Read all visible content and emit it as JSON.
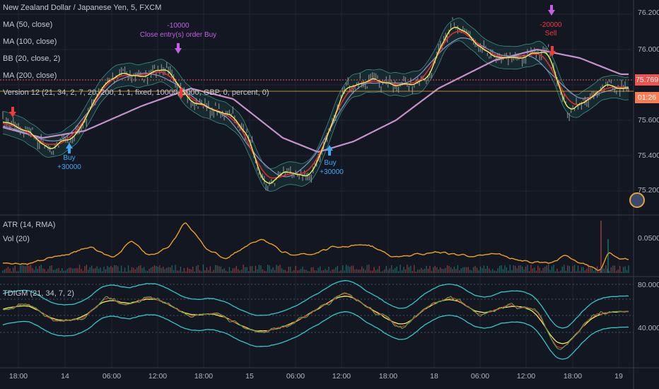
{
  "main_legend": {
    "symbol": "New Zealand Dollar / Japanese Yen, 5, FXCM",
    "indicators": [
      "MA (50, close)",
      "MA (100, close)",
      "BB (20, close, 2)",
      "MA (200, close)",
      "Version 12 (21, 34, 2, 7, 20, 200, 1, 1, fixed, 10000, 1000, GBP, 0, percent, 0)"
    ]
  },
  "price_axis": {
    "labels": [
      "76.200",
      "76.000",
      "75.600",
      "75.400",
      "75.200"
    ],
    "current_price": "75.769",
    "countdown": "01:26"
  },
  "time_axis": {
    "labels": [
      "18:00",
      "14",
      "06:00",
      "12:00",
      "18:00",
      "15",
      "06:00",
      "12:00",
      "18:00",
      "18",
      "06:00",
      "12:00",
      "18:00",
      "19"
    ]
  },
  "annotations": {
    "buy1_label": "Buy",
    "buy1_qty": "+30000",
    "close_qty": "-10000",
    "close_label": "Close entry(s) order Buy",
    "sell_qty": "-20000",
    "sell_label": "Sell",
    "buy2_label": "Buy",
    "buy2_qty": "+30000"
  },
  "atr_pane": {
    "legend_1": "ATR (14, RMA)",
    "legend_2": "Vol (20)",
    "axis_label": "0.0500"
  },
  "tdi_pane": {
    "legend": "TDIGM (21, 34, 7, 2)",
    "axis_labels": [
      "80.0000",
      "40.0000"
    ]
  },
  "colors": {
    "background": "#131722",
    "price": "#9aa0a8",
    "ma50": "#f0f060",
    "ma100": "#e02a2a",
    "ma200": "#c490c8",
    "bb": "#3d8b86",
    "atr": "#f0a020",
    "tdi_band": "#32c8c8",
    "current_price": "#ef5350",
    "countdown_bg": "#f77d55"
  }
}
